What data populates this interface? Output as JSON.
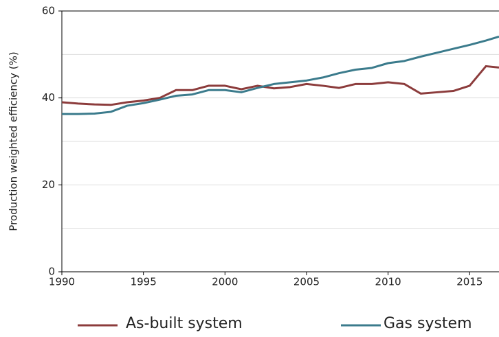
{
  "chart_data": {
    "type": "line",
    "y_label": "Production weighted efficiency (%)",
    "x": [
      1990,
      1991,
      1992,
      1993,
      1994,
      1995,
      1996,
      1997,
      1998,
      1999,
      2000,
      2001,
      2002,
      2003,
      2004,
      2005,
      2006,
      2007,
      2008,
      2009,
      2010,
      2011,
      2012,
      2013,
      2014,
      2015,
      2016,
      2016.8
    ],
    "series": [
      {
        "name": "As-built system",
        "color": "#8c3c3c",
        "values": [
          39.0,
          38.7,
          38.5,
          38.4,
          39.0,
          39.4,
          40.0,
          41.8,
          41.8,
          42.8,
          42.8,
          42.0,
          42.8,
          42.2,
          42.5,
          43.2,
          42.8,
          42.3,
          43.2,
          43.2,
          43.6,
          43.2,
          41.0,
          41.3,
          41.6,
          42.8,
          47.3,
          47.0
        ]
      },
      {
        "name": "Gas system",
        "color": "#3b7b8c",
        "values": [
          36.3,
          36.3,
          36.4,
          36.8,
          38.2,
          38.8,
          39.6,
          40.5,
          40.8,
          41.8,
          41.8,
          41.3,
          42.3,
          43.2,
          43.6,
          44.0,
          44.7,
          45.7,
          46.5,
          46.9,
          48.0,
          48.5,
          49.5,
          50.4,
          51.3,
          52.2,
          53.2,
          54.1
        ]
      }
    ],
    "xlim": [
      1990,
      2016.8
    ],
    "xticks": [
      1990,
      1995,
      2000,
      2005,
      2010,
      2015
    ],
    "ylim": [
      0,
      60
    ],
    "yticks": [
      0,
      20,
      40,
      60
    ],
    "ygrid": [
      10,
      20,
      30,
      40,
      50
    ],
    "legend": "bottom"
  }
}
